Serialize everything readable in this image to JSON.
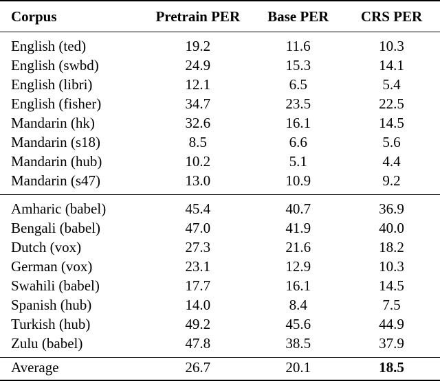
{
  "table": {
    "headers": [
      "Corpus",
      "Pretrain PER",
      "Base PER",
      "CRS PER"
    ],
    "group1": [
      [
        "English (ted)",
        "19.2",
        "11.6",
        "10.3"
      ],
      [
        "English (swbd)",
        "24.9",
        "15.3",
        "14.1"
      ],
      [
        "English (libri)",
        "12.1",
        "6.5",
        "5.4"
      ],
      [
        "English (fisher)",
        "34.7",
        "23.5",
        "22.5"
      ],
      [
        "Mandarin (hk)",
        "32.6",
        "16.1",
        "14.5"
      ],
      [
        "Mandarin (s18)",
        "8.5",
        "6.6",
        "5.6"
      ],
      [
        "Mandarin (hub)",
        "10.2",
        "5.1",
        "4.4"
      ],
      [
        "Mandarin (s47)",
        "13.0",
        "10.9",
        "9.2"
      ]
    ],
    "group2": [
      [
        "Amharic (babel)",
        "45.4",
        "40.7",
        "36.9"
      ],
      [
        "Bengali (babel)",
        "47.0",
        "41.9",
        "40.0"
      ],
      [
        "Dutch (vox)",
        "27.3",
        "21.6",
        "18.2"
      ],
      [
        "German (vox)",
        "23.1",
        "12.9",
        "10.3"
      ],
      [
        "Swahili (babel)",
        "17.7",
        "16.1",
        "14.5"
      ],
      [
        "Spanish (hub)",
        "14.0",
        "8.4",
        "7.5"
      ],
      [
        "Turkish (hub)",
        "49.2",
        "45.6",
        "44.9"
      ],
      [
        "Zulu (babel)",
        "47.8",
        "38.5",
        "37.9"
      ]
    ],
    "average": [
      "Average",
      "26.7",
      "20.1",
      "18.5"
    ]
  }
}
